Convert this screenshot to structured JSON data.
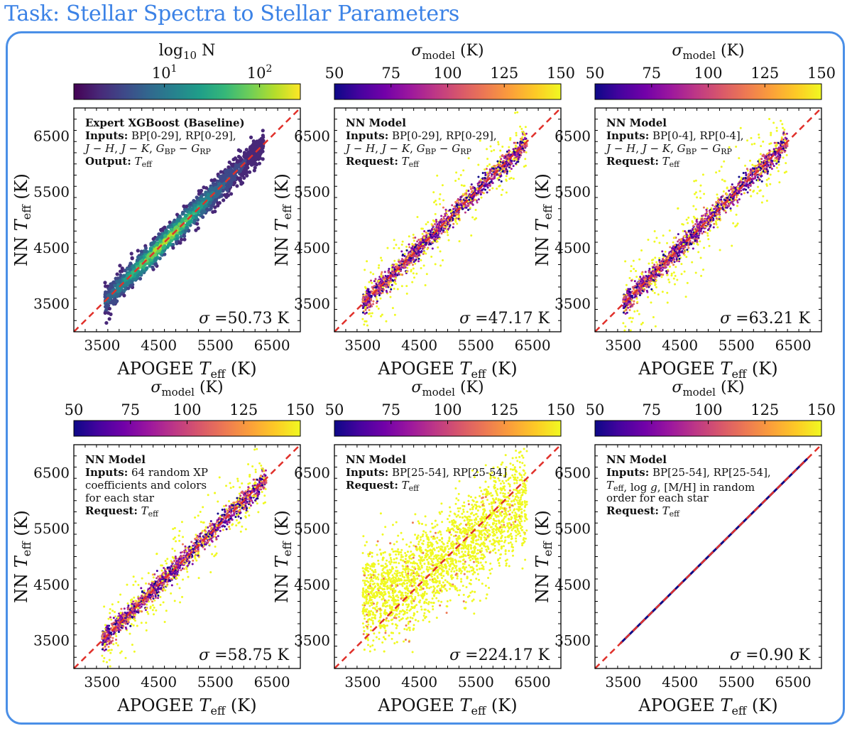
{
  "title": "Task: Stellar Spectra to Stellar Parameters",
  "colors": {
    "accent": "#3b82e6",
    "diagonal": "#e0302a",
    "frame": "#4a8fe7"
  },
  "colorbars": {
    "count": {
      "label": "log10 N",
      "ticks": [
        "10^1",
        "10^2"
      ],
      "map": "viridis"
    },
    "sigma": {
      "label": "σmodel (K)",
      "ticks": [
        "50",
        "75",
        "100",
        "125",
        "150"
      ],
      "map": "plasma"
    }
  },
  "chart_data": [
    {
      "type": "scatter",
      "name": "panel-xgboost",
      "xlabel": "APOGEE Teff (K)",
      "ylabel": "NN Teff (K)",
      "xlim": [
        3000,
        7000
      ],
      "ylim": [
        3000,
        7000
      ],
      "xticks": [
        3500,
        4500,
        5500,
        6500
      ],
      "yticks": [
        3500,
        4500,
        5500,
        6500
      ],
      "colorbar": "count",
      "bold_title": "Expert XGBoost (Baseline)",
      "annotation_lines": [
        "Inputs: BP[0-29], RP[0-29],",
        "J − H, J − K, GBP − GRP",
        "Output: Teff"
      ],
      "sigma_text": "σ =50.73 K",
      "x": [
        3550,
        4000,
        4500,
        5000,
        5500,
        6000,
        6350
      ],
      "y": [
        3550,
        4000,
        4500,
        5000,
        5500,
        6000,
        6350
      ]
    },
    {
      "type": "scatter",
      "name": "panel-nn-full",
      "xlabel": "APOGEE Teff (K)",
      "ylabel": "NN Teff (K)",
      "xlim": [
        3000,
        7000
      ],
      "ylim": [
        3000,
        7000
      ],
      "xticks": [
        3500,
        4500,
        5500,
        6500
      ],
      "yticks": [
        3500,
        4500,
        5500,
        6500
      ],
      "colorbar": "sigma",
      "bold_title": "NN Model",
      "annotation_lines": [
        "Inputs: BP[0-29], RP[0-29],",
        "J − H, J − K, GBP − GRP",
        "Request: Teff"
      ],
      "sigma_text": "σ =47.17 K",
      "x": [
        3500,
        4000,
        4500,
        5000,
        5500,
        6000,
        6400
      ],
      "y": [
        3500,
        4000,
        4500,
        5000,
        5500,
        6000,
        6400
      ]
    },
    {
      "type": "scatter",
      "name": "panel-nn-0-4",
      "xlabel": "APOGEE Teff (K)",
      "ylabel": "NN Teff (K)",
      "xlim": [
        3000,
        7000
      ],
      "ylim": [
        3000,
        7000
      ],
      "xticks": [
        3500,
        4500,
        5500,
        6500
      ],
      "yticks": [
        3500,
        4500,
        5500,
        6500
      ],
      "colorbar": "sigma",
      "bold_title": "NN Model",
      "annotation_lines": [
        "Inputs: BP[0-4], RP[0-4],",
        "J − H, J − K, GBP − GRP",
        "Request: Teff"
      ],
      "sigma_text": "σ =63.21 K",
      "x": [
        3500,
        4000,
        4500,
        5000,
        5500,
        6000,
        6400
      ],
      "y": [
        3500,
        4000,
        4500,
        5000,
        5500,
        6000,
        6400
      ]
    },
    {
      "type": "scatter",
      "name": "panel-nn-random-xp",
      "xlabel": "APOGEE Teff (K)",
      "ylabel": "NN Teff (K)",
      "xlim": [
        3000,
        7000
      ],
      "ylim": [
        3000,
        7000
      ],
      "xticks": [
        3500,
        4500,
        5500,
        6500
      ],
      "yticks": [
        3500,
        4500,
        5500,
        6500
      ],
      "colorbar": "sigma",
      "bold_title": "NN Model",
      "annotation_lines": [
        "Inputs: 64 random XP",
        "coefficients and colors",
        "for each star",
        "Request: Teff"
      ],
      "sigma_text": "σ =58.75 K",
      "x": [
        3500,
        4000,
        4500,
        5000,
        5500,
        6000,
        6400
      ],
      "y": [
        3500,
        4000,
        4500,
        5000,
        5500,
        6000,
        6400
      ]
    },
    {
      "type": "scatter",
      "name": "panel-nn-25-54",
      "xlabel": "APOGEE Teff (K)",
      "ylabel": "NN Teff (K)",
      "xlim": [
        3000,
        7000
      ],
      "ylim": [
        3000,
        7000
      ],
      "xticks": [
        3500,
        4500,
        5500,
        6500
      ],
      "yticks": [
        3500,
        4500,
        5500,
        6500
      ],
      "colorbar": "sigma",
      "bold_title": "NN Model",
      "annotation_lines": [
        "Inputs: BP[25-54], RP[25-54]",
        "Request: Teff"
      ],
      "sigma_text": "σ =224.17 K",
      "x": [
        3500,
        4000,
        4500,
        5000,
        5500,
        6000,
        6400
      ],
      "y": [
        4200,
        4300,
        4600,
        5000,
        5400,
        5800,
        6000
      ]
    },
    {
      "type": "scatter",
      "name": "panel-nn-with-params",
      "xlabel": "APOGEE Teff (K)",
      "ylabel": "NN Teff (K)",
      "xlim": [
        3000,
        7000
      ],
      "ylim": [
        3000,
        7000
      ],
      "xticks": [
        3500,
        4500,
        5500,
        6500
      ],
      "yticks": [
        3500,
        4500,
        5500,
        6500
      ],
      "colorbar": "sigma",
      "bold_title": "NN Model",
      "annotation_lines": [
        "Inputs: BP[25-54], RP[25-54],",
        "Teff, log g, [M/H] in random",
        "order for each star",
        "Request: Teff"
      ],
      "sigma_text": "σ =0.90 K",
      "x": [
        3450,
        4500,
        5500,
        6750
      ],
      "y": [
        3450,
        4500,
        5500,
        6750
      ]
    }
  ]
}
